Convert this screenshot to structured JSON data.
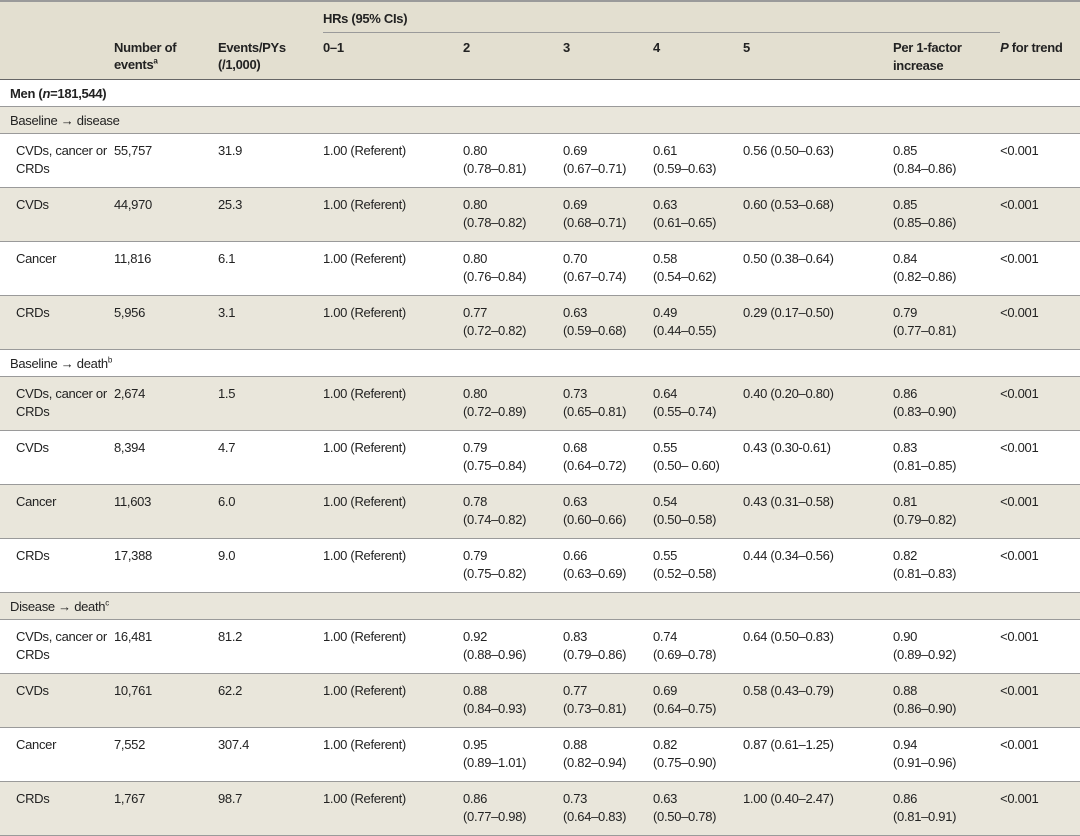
{
  "header": {
    "hrs_group": "HRs (95% CIs)",
    "number_of_events": "Number of events",
    "number_of_events_sup": "a",
    "events_pys": "Events/PYs (/1,000)",
    "levels": [
      "0–1",
      "2",
      "3",
      "4",
      "5"
    ],
    "per_factor": "Per 1-factor increase",
    "p_trend_italic": "P",
    "p_trend_rest": " for trend"
  },
  "group": {
    "label_pre": "Men (",
    "label_n": "n",
    "label_post": "=181,544)"
  },
  "sections": [
    {
      "label": "Baseline → disease",
      "sup": "",
      "rows": [
        {
          "outcome": "CVDs, cancer or CRDs",
          "events": "55,757",
          "rate": "31.9",
          "ref": "1.00 (Referent)",
          "h2": [
            "0.80",
            "(0.78–0.81)"
          ],
          "h3": [
            "0.69",
            "(0.67–0.71)"
          ],
          "h4": [
            "0.61",
            "(0.59–0.63)"
          ],
          "h5": "0.56 (0.50–0.63)",
          "per": [
            "0.85",
            "(0.84–0.86)"
          ],
          "p": "<0.001"
        },
        {
          "outcome": "CVDs",
          "events": "44,970",
          "rate": "25.3",
          "ref": "1.00 (Referent)",
          "h2": [
            "0.80",
            "(0.78–0.82)"
          ],
          "h3": [
            "0.69",
            "(0.68–0.71)"
          ],
          "h4": [
            "0.63",
            "(0.61–0.65)"
          ],
          "h5": "0.60 (0.53–0.68)",
          "per": [
            "0.85",
            "(0.85–0.86)"
          ],
          "p": "<0.001"
        },
        {
          "outcome": "Cancer",
          "events": "11,816",
          "rate": "6.1",
          "ref": "1.00 (Referent)",
          "h2": [
            "0.80",
            "(0.76–0.84)"
          ],
          "h3": [
            "0.70",
            "(0.67–0.74)"
          ],
          "h4": [
            "0.58",
            "(0.54–0.62)"
          ],
          "h5": "0.50 (0.38–0.64)",
          "per": [
            "0.84",
            "(0.82–0.86)"
          ],
          "p": "<0.001"
        },
        {
          "outcome": "CRDs",
          "events": "5,956",
          "rate": "3.1",
          "ref": "1.00 (Referent)",
          "h2": [
            "0.77",
            "(0.72–0.82)"
          ],
          "h3": [
            "0.63",
            "(0.59–0.68)"
          ],
          "h4": [
            "0.49",
            "(0.44–0.55)"
          ],
          "h5": "0.29 (0.17–0.50)",
          "per": [
            "0.79",
            "(0.77–0.81)"
          ],
          "p": "<0.001"
        }
      ]
    },
    {
      "label": "Baseline → death",
      "sup": "b",
      "rows": [
        {
          "outcome": "CVDs, cancer or CRDs",
          "events": "2,674",
          "rate": "1.5",
          "ref": "1.00 (Referent)",
          "h2": [
            "0.80",
            "(0.72–0.89)"
          ],
          "h3": [
            "0.73",
            "(0.65–0.81)"
          ],
          "h4": [
            "0.64",
            "(0.55–0.74)"
          ],
          "h5": "0.40 (0.20–0.80)",
          "per": [
            "0.86",
            "(0.83–0.90)"
          ],
          "p": "<0.001"
        },
        {
          "outcome": "CVDs",
          "events": "8,394",
          "rate": "4.7",
          "ref": "1.00 (Referent)",
          "h2": [
            "0.79",
            "(0.75–0.84)"
          ],
          "h3": [
            "0.68",
            "(0.64–0.72)"
          ],
          "h4": [
            "0.55",
            "(0.50– 0.60)"
          ],
          "h5": "0.43 (0.30-0.61)",
          "per": [
            "0.83",
            "(0.81–0.85)"
          ],
          "p": "<0.001"
        },
        {
          "outcome": "Cancer",
          "events": "11,603",
          "rate": "6.0",
          "ref": "1.00 (Referent)",
          "h2": [
            "0.78",
            "(0.74–0.82)"
          ],
          "h3": [
            "0.63",
            "(0.60–0.66)"
          ],
          "h4": [
            "0.54",
            "(0.50–0.58)"
          ],
          "h5": "0.43 (0.31–0.58)",
          "per": [
            "0.81",
            "(0.79–0.82)"
          ],
          "p": "<0.001"
        },
        {
          "outcome": "CRDs",
          "events": "17,388",
          "rate": "9.0",
          "ref": "1.00 (Referent)",
          "h2": [
            "0.79",
            "(0.75–0.82)"
          ],
          "h3": [
            "0.66",
            "(0.63–0.69)"
          ],
          "h4": [
            "0.55",
            "(0.52–0.58)"
          ],
          "h5": "0.44 (0.34–0.56)",
          "per": [
            "0.82",
            "(0.81–0.83)"
          ],
          "p": "<0.001"
        }
      ]
    },
    {
      "label": "Disease → death",
      "sup": "c",
      "rows": [
        {
          "outcome": "CVDs, cancer or CRDs",
          "events": "16,481",
          "rate": "81.2",
          "ref": "1.00 (Referent)",
          "h2": [
            "0.92",
            "(0.88–0.96)"
          ],
          "h3": [
            "0.83",
            "(0.79–0.86)"
          ],
          "h4": [
            "0.74",
            "(0.69–0.78)"
          ],
          "h5": "0.64 (0.50–0.83)",
          "per": [
            "0.90",
            "(0.89–0.92)"
          ],
          "p": "<0.001"
        },
        {
          "outcome": "CVDs",
          "events": "10,761",
          "rate": "62.2",
          "ref": "1.00 (Referent)",
          "h2": [
            "0.88",
            "(0.84–0.93)"
          ],
          "h3": [
            "0.77",
            "(0.73–0.81)"
          ],
          "h4": [
            "0.69",
            "(0.64–0.75)"
          ],
          "h5": "0.58 (0.43–0.79)",
          "per": [
            "0.88",
            "(0.86–0.90)"
          ],
          "p": "<0.001"
        },
        {
          "outcome": "Cancer",
          "events": "7,552",
          "rate": "307.4",
          "ref": "1.00 (Referent)",
          "h2": [
            "0.95",
            "(0.89–1.01)"
          ],
          "h3": [
            "0.88",
            "(0.82–0.94)"
          ],
          "h4": [
            "0.82",
            "(0.75–0.90)"
          ],
          "h5": "0.87 (0.61–1.25)",
          "per": [
            "0.94",
            "(0.91–0.96)"
          ],
          "p": "<0.001"
        },
        {
          "outcome": "CRDs",
          "events": "1,767",
          "rate": "98.7",
          "ref": "1.00 (Referent)",
          "h2": [
            "0.86",
            "(0.77–0.98)"
          ],
          "h3": [
            "0.73",
            "(0.64–0.83)"
          ],
          "h4": [
            "0.63",
            "(0.50–0.78)"
          ],
          "h5": "1.00 (0.40–2.47)",
          "per": [
            "0.86",
            "(0.81–0.91)"
          ],
          "p": "<0.001"
        }
      ]
    }
  ]
}
